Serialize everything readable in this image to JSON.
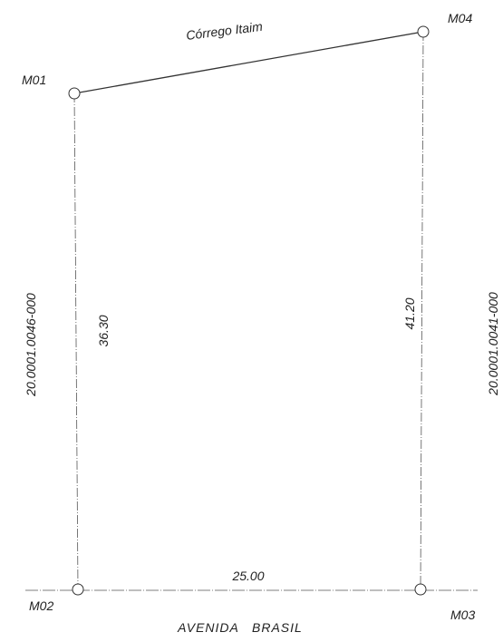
{
  "markers": {
    "m01": "M01",
    "m02": "M02",
    "m03": "M03",
    "m04": "M04"
  },
  "dimensions": {
    "left_side": "36.30",
    "right_side": "41.20",
    "bottom_side": "25.00"
  },
  "boundaries": {
    "top_stream": "Córrego Itaim",
    "bottom_street": "AVENIDA   BRASIL",
    "left_parcel": "20.0001.0046-000",
    "right_parcel": "20.0001.0041-000"
  },
  "colors": {
    "line": "#333333",
    "light_line": "#666666",
    "text": "#222222"
  }
}
